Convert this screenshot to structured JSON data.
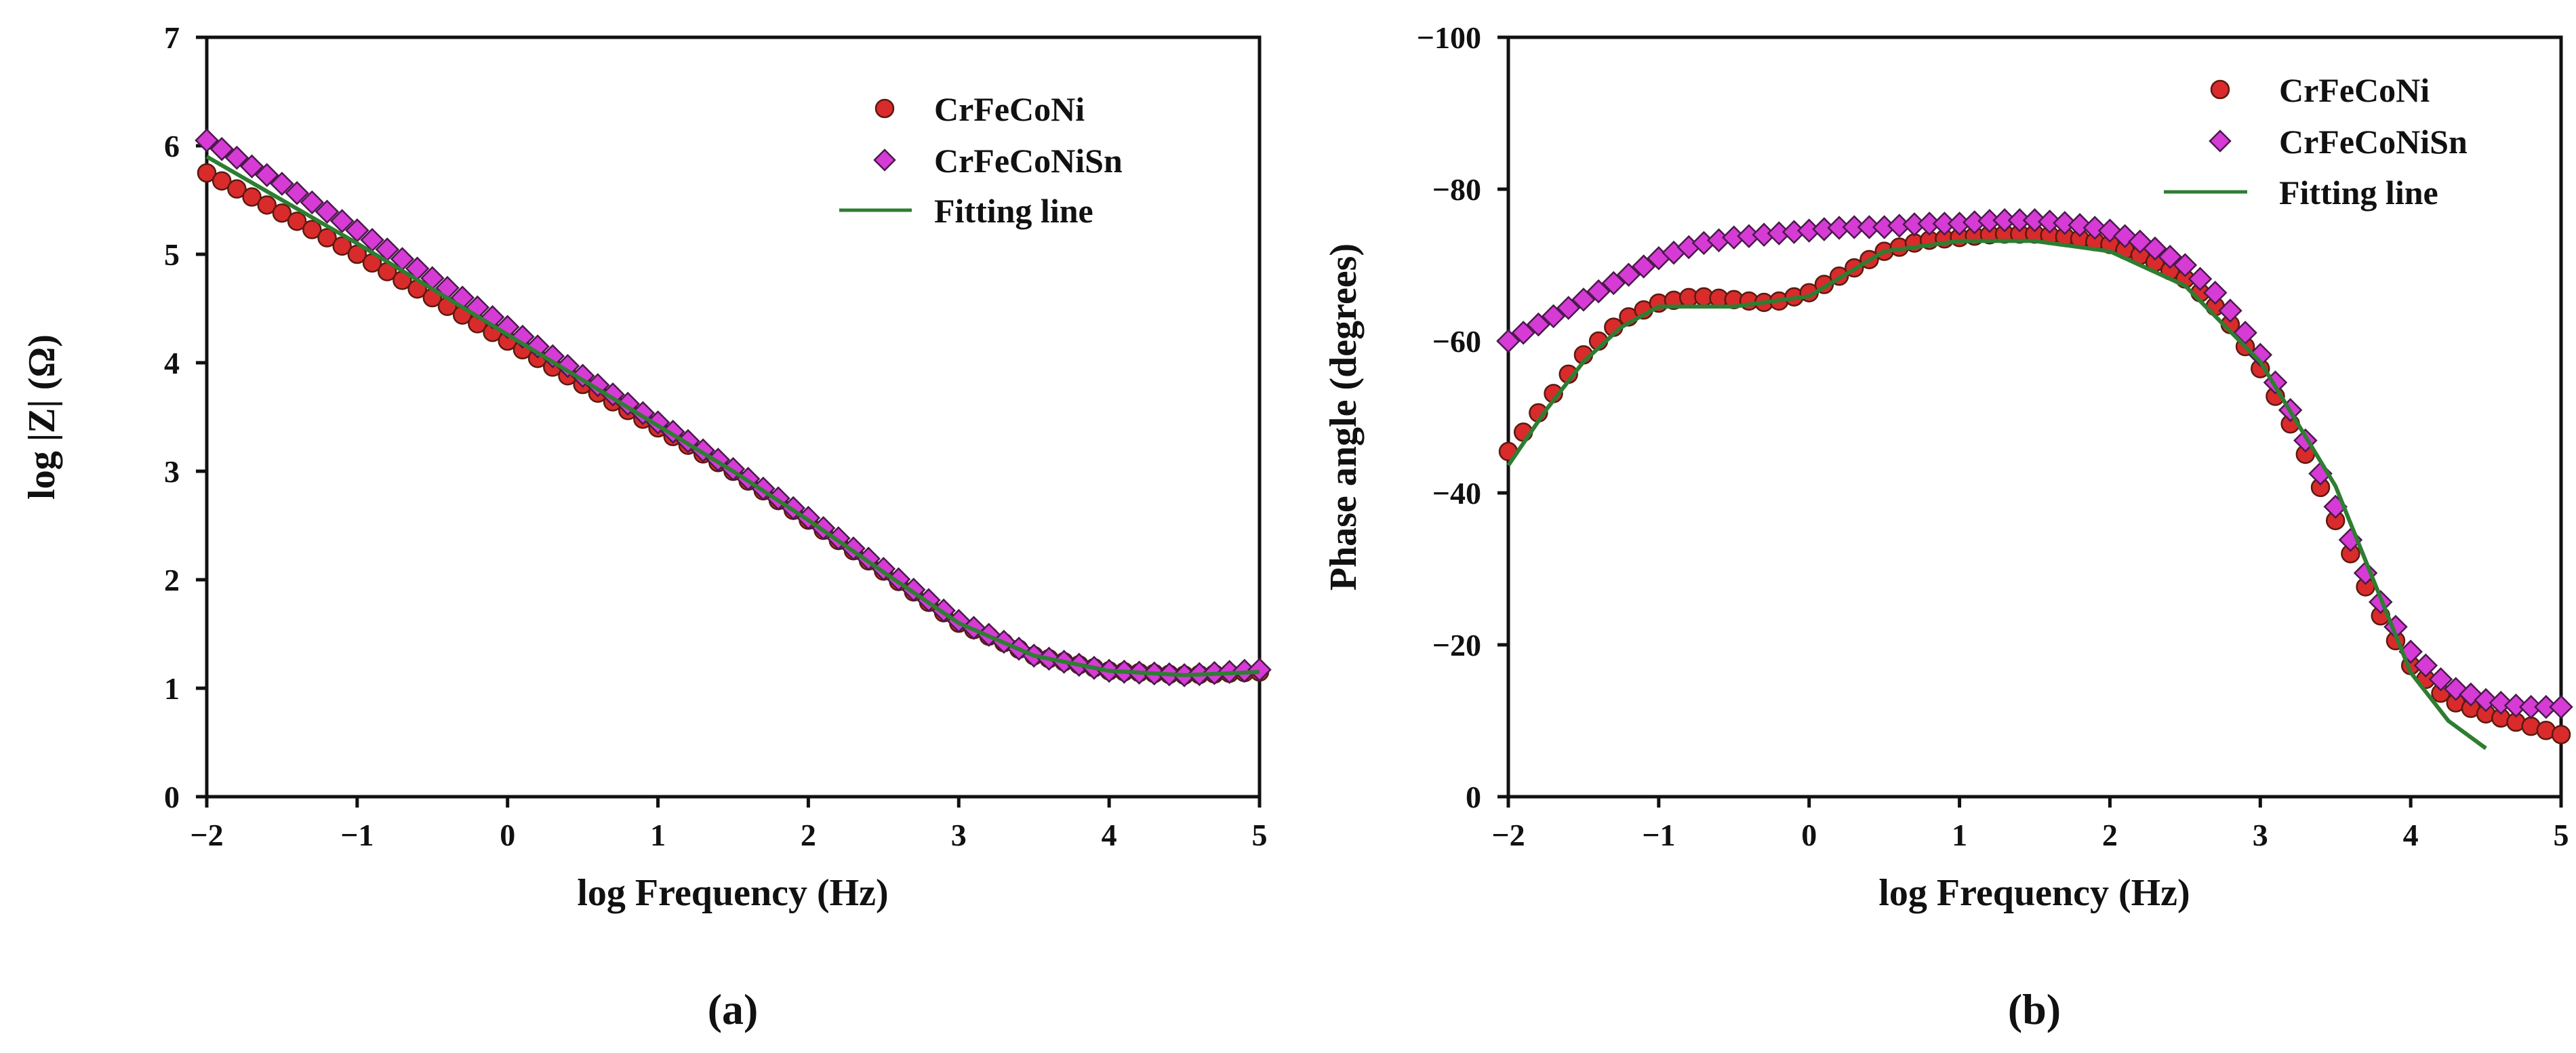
{
  "colors": {
    "crfeconi": "#d92b2b",
    "crfeconi_edge": "#5a1a10",
    "crfeconisn": "#d63bd6",
    "crfeconisn_edge": "#4a1a4a",
    "fit": "#2e7d32",
    "axis": "#111111"
  },
  "chart_data": [
    {
      "type": "scatter",
      "panel_label": "(a)",
      "xlabel": "log Frequency (Hz)",
      "ylabel": "log |Z| (Ω)",
      "xlim": [
        -2,
        5
      ],
      "ylim": [
        0,
        7
      ],
      "xticks": [
        "−2",
        "−1",
        "0",
        "1",
        "2",
        "3",
        "4",
        "5"
      ],
      "yticks": [
        "0",
        "1",
        "2",
        "3",
        "4",
        "5",
        "6",
        "7"
      ],
      "legend": [
        "CrFeCoNi",
        "CrFeCoNiSn",
        "Fitting line"
      ],
      "legend_position": "top-right",
      "series": [
        {
          "name": "CrFeCoNi",
          "marker": "circle",
          "points": [
            [
              -2,
              5.75
            ],
            [
              -1.5,
              5.38
            ],
            [
              -1,
              5.0
            ],
            [
              -0.5,
              4.6
            ],
            [
              0,
              4.2
            ],
            [
              0.5,
              3.8
            ],
            [
              1,
              3.4
            ],
            [
              1.5,
              3.0
            ],
            [
              2,
              2.55
            ],
            [
              2.5,
              2.08
            ],
            [
              3,
              1.6
            ],
            [
              3.5,
              1.3
            ],
            [
              4,
              1.16
            ],
            [
              4.5,
              1.12
            ],
            [
              5,
              1.15
            ]
          ]
        },
        {
          "name": "CrFeCoNiSn",
          "marker": "diamond",
          "points": [
            [
              -2,
              6.05
            ],
            [
              -1.5,
              5.65
            ],
            [
              -1,
              5.22
            ],
            [
              -0.5,
              4.78
            ],
            [
              0,
              4.33
            ],
            [
              0.5,
              3.88
            ],
            [
              1,
              3.45
            ],
            [
              1.5,
              3.02
            ],
            [
              2,
              2.57
            ],
            [
              2.5,
              2.1
            ],
            [
              3,
              1.62
            ],
            [
              3.5,
              1.3
            ],
            [
              4,
              1.16
            ],
            [
              4.5,
              1.12
            ],
            [
              5,
              1.17
            ]
          ]
        },
        {
          "name": "Fitting line",
          "marker": "line",
          "points": [
            [
              -2,
              5.9
            ],
            [
              -1.5,
              5.5
            ],
            [
              -1,
              5.1
            ],
            [
              -0.5,
              4.68
            ],
            [
              0,
              4.26
            ],
            [
              0.5,
              3.84
            ],
            [
              1,
              3.42
            ],
            [
              1.5,
              3.0
            ],
            [
              2,
              2.55
            ],
            [
              2.5,
              2.07
            ],
            [
              3,
              1.6
            ],
            [
              3.5,
              1.3
            ],
            [
              4,
              1.16
            ],
            [
              4.5,
              1.12
            ],
            [
              5,
              1.15
            ]
          ]
        }
      ]
    },
    {
      "type": "scatter",
      "panel_label": "(b)",
      "xlabel": "log Frequency (Hz)",
      "ylabel": "Phase angle (degrees)",
      "xlim": [
        -2,
        5
      ],
      "ylim": [
        0,
        -110
      ],
      "xticks": [
        "−2",
        "−1",
        "0",
        "1",
        "2",
        "3",
        "4",
        "5"
      ],
      "yticks": [
        "0",
        "−20",
        "−40",
        "−60",
        "−80",
        "−100"
      ],
      "legend": [
        "CrFeCoNi",
        "CrFeCoNiSn",
        "Fitting line"
      ],
      "legend_position": "top-right",
      "series": [
        {
          "name": "CrFeCoNi",
          "marker": "circle",
          "points": [
            [
              -2,
              -50
            ],
            [
              -1.75,
              -57
            ],
            [
              -1.5,
              -64
            ],
            [
              -1.25,
              -69
            ],
            [
              -1,
              -71.5
            ],
            [
              -0.75,
              -72.5
            ],
            [
              -0.5,
              -72
            ],
            [
              -0.25,
              -71.5
            ],
            [
              0,
              -73
            ],
            [
              0.25,
              -76
            ],
            [
              0.5,
              -79
            ],
            [
              0.75,
              -80.5
            ],
            [
              1,
              -81
            ],
            [
              1.25,
              -81.5
            ],
            [
              1.5,
              -81.5
            ],
            [
              1.75,
              -81
            ],
            [
              2,
              -80
            ],
            [
              2.25,
              -78
            ],
            [
              2.5,
              -75
            ],
            [
              2.75,
              -70
            ],
            [
              3,
              -62
            ],
            [
              3.25,
              -52
            ],
            [
              3.5,
              -40
            ],
            [
              3.75,
              -28
            ],
            [
              4,
              -19
            ],
            [
              4.25,
              -14
            ],
            [
              4.5,
              -12
            ],
            [
              4.75,
              -10.5
            ],
            [
              5,
              -9
            ]
          ]
        },
        {
          "name": "CrFeCoNiSn",
          "marker": "diamond",
          "points": [
            [
              -2,
              -66
            ],
            [
              -1.75,
              -69
            ],
            [
              -1.5,
              -72
            ],
            [
              -1.25,
              -75
            ],
            [
              -1,
              -78
            ],
            [
              -0.75,
              -80
            ],
            [
              -0.5,
              -81
            ],
            [
              -0.25,
              -81.5
            ],
            [
              0,
              -82
            ],
            [
              0.25,
              -82.5
            ],
            [
              0.5,
              -82.5
            ],
            [
              0.75,
              -83
            ],
            [
              1,
              -83
            ],
            [
              1.25,
              -83.5
            ],
            [
              1.5,
              -83.5
            ],
            [
              1.75,
              -83
            ],
            [
              2,
              -82
            ],
            [
              2.25,
              -80
            ],
            [
              2.5,
              -77
            ],
            [
              2.75,
              -72
            ],
            [
              3,
              -64
            ],
            [
              3.25,
              -54
            ],
            [
              3.5,
              -42
            ],
            [
              3.75,
              -30
            ],
            [
              4,
              -21
            ],
            [
              4.25,
              -16
            ],
            [
              4.5,
              -14
            ],
            [
              4.75,
              -13
            ],
            [
              5,
              -13
            ]
          ]
        },
        {
          "name": "Fitting line",
          "marker": "line",
          "points": [
            [
              -2,
              -48
            ],
            [
              -1.75,
              -56
            ],
            [
              -1.5,
              -63
            ],
            [
              -1.25,
              -68
            ],
            [
              -1,
              -71
            ],
            [
              -0.5,
              -71
            ],
            [
              0,
              -72.5
            ],
            [
              0.5,
              -79
            ],
            [
              1,
              -80.5
            ],
            [
              1.5,
              -80.5
            ],
            [
              2,
              -79
            ],
            [
              2.5,
              -74
            ],
            [
              3,
              -63
            ],
            [
              3.5,
              -45
            ],
            [
              4,
              -18
            ],
            [
              4.25,
              -11
            ],
            [
              4.5,
              -7
            ]
          ]
        }
      ]
    }
  ]
}
